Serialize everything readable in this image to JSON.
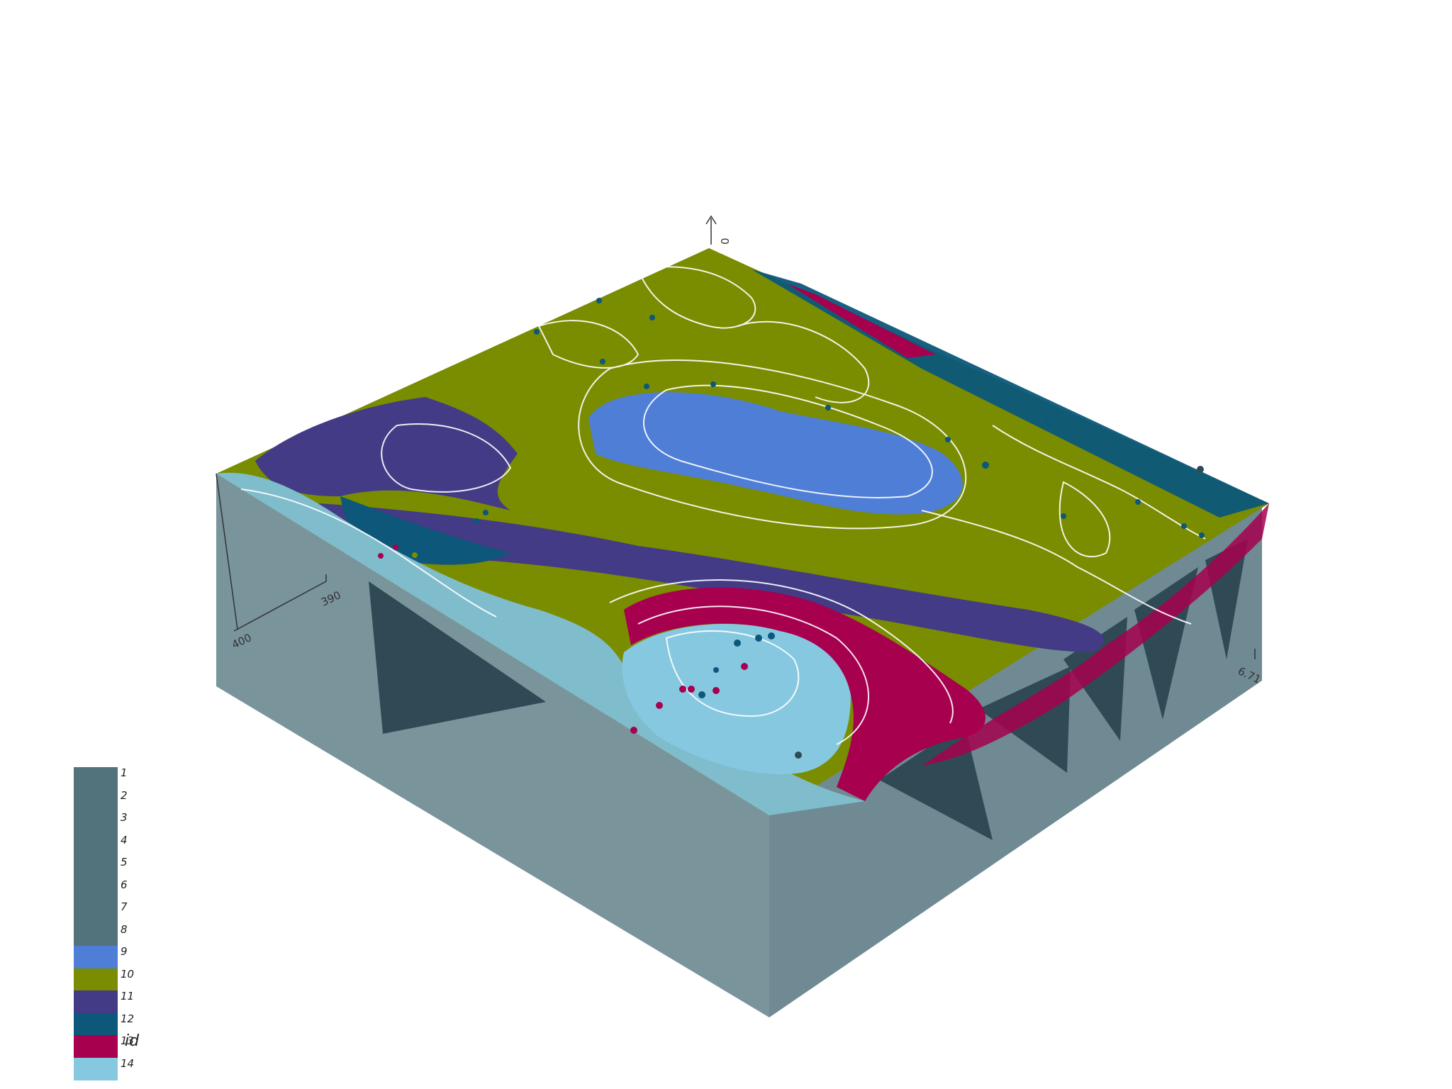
{
  "scene": {
    "background_color": "#ffffff",
    "axis_labels": {
      "z_top": "0",
      "x_left": "400",
      "x_mid": "390",
      "y_right": "6.71"
    }
  },
  "legend": {
    "title": "id",
    "entries": [
      {
        "label": "1",
        "color": "#52737c"
      },
      {
        "label": "2",
        "color": "#52737c"
      },
      {
        "label": "3",
        "color": "#52737c"
      },
      {
        "label": "4",
        "color": "#52737c"
      },
      {
        "label": "5",
        "color": "#52737c"
      },
      {
        "label": "6",
        "color": "#52737c"
      },
      {
        "label": "7",
        "color": "#52737c"
      },
      {
        "label": "8",
        "color": "#52737c"
      },
      {
        "label": "9",
        "color": "#4f7ed6"
      },
      {
        "label": "10",
        "color": "#7a8c00"
      },
      {
        "label": "11",
        "color": "#433b85"
      },
      {
        "label": "12",
        "color": "#0c577a"
      },
      {
        "label": "13",
        "color": "#a6004f"
      },
      {
        "label": "14",
        "color": "#86c8e0"
      }
    ]
  },
  "colors": {
    "side_face": "#7a949c",
    "side_face_dark": "#2f4a54",
    "surface_light_blue": "#7fbccc",
    "green": "#7a8c00",
    "purple": "#433b85",
    "teal": "#0c577a",
    "magenta": "#a6004f",
    "blue": "#4f7ed6"
  }
}
